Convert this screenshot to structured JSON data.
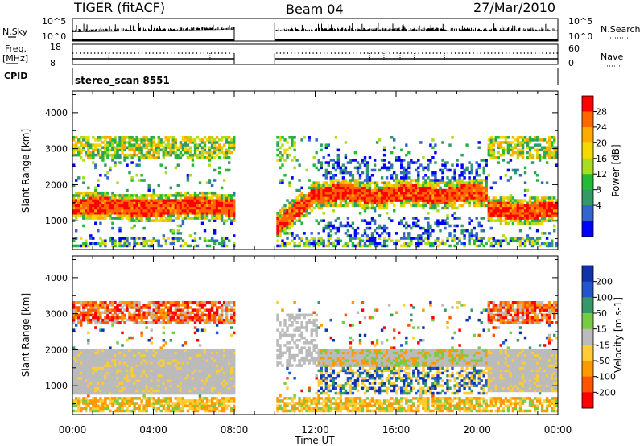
{
  "header": {
    "radar": "TIGER (fitACF)",
    "beam": "Beam 04",
    "date": "27/Mar/2010"
  },
  "strip": {
    "nsky_label": "N.Sky",
    "nsearch_label": "N.Search",
    "nsky_ticks": [
      "10^5",
      "10^0"
    ],
    "nsearch_ticks": [
      "10^5",
      "10^0"
    ],
    "freq_label_1": "Freq.",
    "freq_label_2": "[MHz]",
    "freq_ticks": [
      "18",
      "8"
    ],
    "nave_label": "Nave",
    "nave_ticks": [
      "60",
      "0"
    ],
    "cpid_label": "CPID",
    "cpid_value": "stereo_scan 8551"
  },
  "chart_data": [
    {
      "type": "heatmap",
      "name": "power",
      "ylabel": "Slant Range [km]",
      "ylim": [
        200,
        4600
      ],
      "yticks": [
        "4000",
        "3000",
        "2000",
        "1000"
      ],
      "xlabel": "",
      "xlim": [
        0,
        24
      ],
      "colorbar": {
        "label": "Power [dB]",
        "ticks": [
          "28",
          "24",
          "20",
          "16",
          "12",
          "8",
          "4"
        ],
        "colors": [
          "#ff0000",
          "#ff6600",
          "#ffaa00",
          "#f5d800",
          "#aadd22",
          "#22bb33",
          "#339966",
          "#3366cc",
          "#0000ff"
        ]
      },
      "data_gaps_ut": [
        [
          8.0,
          10.0
        ]
      ]
    },
    {
      "type": "heatmap",
      "name": "velocity",
      "ylabel": "Slant Range [km]",
      "ylim": [
        200,
        4600
      ],
      "yticks": [
        "4000",
        "3000",
        "2000",
        "1000"
      ],
      "xlabel": "Time UT",
      "xlim": [
        0,
        24
      ],
      "xticks": [
        "00:00",
        "04:00",
        "08:00",
        "12:00",
        "16:00",
        "20:00",
        "00:00"
      ],
      "colorbar": {
        "label": "Velocity [m s-1]",
        "ticks": [
          "200",
          "100",
          "50",
          "15",
          "-15",
          "-50",
          "-100",
          "-200"
        ],
        "colors": [
          "#1133aa",
          "#2255cc",
          "#339966",
          "#77cc44",
          "#bbbbbb",
          "#ffcc33",
          "#ff9900",
          "#ff5500",
          "#ff0000"
        ]
      },
      "data_gaps_ut": [
        [
          8.0,
          10.0
        ]
      ]
    }
  ]
}
